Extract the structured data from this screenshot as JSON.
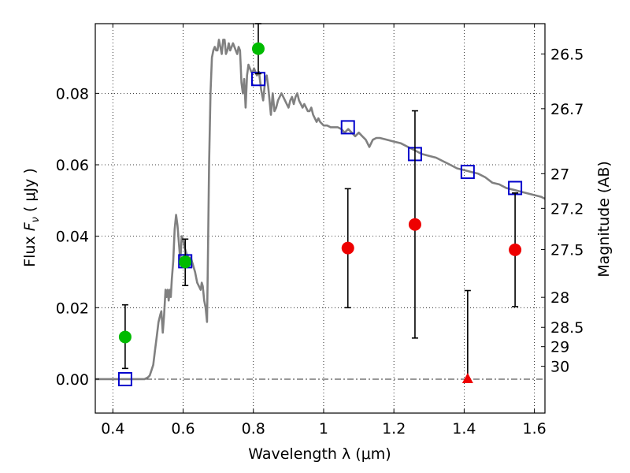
{
  "chart_data": {
    "type": "scatter",
    "xlabel": "Wavelength  λ (μm)",
    "ylabel_prefix": "Flux ",
    "ylabel_var": "F",
    "ylabel_sub": "ν",
    "ylabel_suffix": " ( μJy )",
    "y2label": "Magnitude (AB)",
    "xlim": [
      0.35,
      1.63
    ],
    "ylim": [
      -0.0095,
      0.0995
    ],
    "grid": true,
    "x_ticks": [
      {
        "value": 0.4,
        "label": "0.4"
      },
      {
        "value": 0.6,
        "label": "0.6"
      },
      {
        "value": 0.8,
        "label": "0.8"
      },
      {
        "value": 1.0,
        "label": "1"
      },
      {
        "value": 1.2,
        "label": "1.2"
      },
      {
        "value": 1.4,
        "label": "1.4"
      },
      {
        "value": 1.6,
        "label": "1.6"
      }
    ],
    "y_ticks": [
      {
        "value": 0.0,
        "label": "0.00"
      },
      {
        "value": 0.02,
        "label": "0.02"
      },
      {
        "value": 0.04,
        "label": "0.04"
      },
      {
        "value": 0.06,
        "label": "0.06"
      },
      {
        "value": 0.08,
        "label": "0.08"
      }
    ],
    "y2_ticks": [
      {
        "mag": "26.5",
        "flux": 0.091
      },
      {
        "mag": "26.7",
        "flux": 0.0757
      },
      {
        "mag": "27",
        "flux": 0.0575
      },
      {
        "mag": "27.2",
        "flux": 0.0478
      },
      {
        "mag": "27.5",
        "flux": 0.0363
      },
      {
        "mag": "28",
        "flux": 0.0229
      },
      {
        "mag": "28.5",
        "flux": 0.0145
      },
      {
        "mag": "29",
        "flux": 0.0091
      },
      {
        "mag": "30",
        "flux": 0.0036
      }
    ],
    "series": [
      {
        "kind": "line",
        "color": "#808080",
        "points": [
          [
            0.35,
            0.0
          ],
          [
            0.49,
            0.0
          ],
          [
            0.5,
            0.0005
          ],
          [
            0.505,
            0.001
          ],
          [
            0.51,
            0.0025
          ],
          [
            0.515,
            0.004
          ],
          [
            0.52,
            0.008
          ],
          [
            0.525,
            0.012
          ],
          [
            0.53,
            0.016
          ],
          [
            0.535,
            0.018
          ],
          [
            0.538,
            0.019
          ],
          [
            0.542,
            0.013
          ],
          [
            0.546,
            0.018
          ],
          [
            0.55,
            0.025
          ],
          [
            0.553,
            0.023
          ],
          [
            0.556,
            0.025
          ],
          [
            0.559,
            0.022
          ],
          [
            0.562,
            0.025
          ],
          [
            0.565,
            0.023
          ],
          [
            0.568,
            0.028
          ],
          [
            0.572,
            0.033
          ],
          [
            0.576,
            0.042
          ],
          [
            0.58,
            0.046
          ],
          [
            0.584,
            0.043
          ],
          [
            0.588,
            0.038
          ],
          [
            0.592,
            0.033
          ],
          [
            0.596,
            0.04
          ],
          [
            0.6,
            0.039
          ],
          [
            0.604,
            0.037
          ],
          [
            0.61,
            0.035
          ],
          [
            0.616,
            0.034
          ],
          [
            0.622,
            0.034
          ],
          [
            0.628,
            0.032
          ],
          [
            0.634,
            0.03
          ],
          [
            0.64,
            0.027
          ],
          [
            0.645,
            0.026
          ],
          [
            0.65,
            0.025
          ],
          [
            0.653,
            0.027
          ],
          [
            0.656,
            0.026
          ],
          [
            0.66,
            0.022
          ],
          [
            0.664,
            0.02
          ],
          [
            0.668,
            0.016
          ],
          [
            0.67,
            0.03
          ],
          [
            0.674,
            0.06
          ],
          [
            0.678,
            0.08
          ],
          [
            0.682,
            0.09
          ],
          [
            0.686,
            0.092
          ],
          [
            0.69,
            0.093
          ],
          [
            0.694,
            0.092
          ],
          [
            0.698,
            0.092
          ],
          [
            0.702,
            0.095
          ],
          [
            0.706,
            0.093
          ],
          [
            0.71,
            0.091
          ],
          [
            0.714,
            0.095
          ],
          [
            0.718,
            0.095
          ],
          [
            0.722,
            0.091
          ],
          [
            0.726,
            0.092
          ],
          [
            0.73,
            0.094
          ],
          [
            0.734,
            0.092
          ],
          [
            0.738,
            0.093
          ],
          [
            0.742,
            0.094
          ],
          [
            0.746,
            0.093
          ],
          [
            0.75,
            0.092
          ],
          [
            0.754,
            0.091
          ],
          [
            0.758,
            0.093
          ],
          [
            0.762,
            0.092
          ],
          [
            0.766,
            0.083
          ],
          [
            0.77,
            0.08
          ],
          [
            0.774,
            0.084
          ],
          [
            0.778,
            0.076
          ],
          [
            0.782,
            0.085
          ],
          [
            0.786,
            0.088
          ],
          [
            0.79,
            0.087
          ],
          [
            0.794,
            0.086
          ],
          [
            0.798,
            0.086
          ],
          [
            0.802,
            0.087
          ],
          [
            0.806,
            0.086
          ],
          [
            0.81,
            0.085
          ],
          [
            0.816,
            0.086
          ],
          [
            0.822,
            0.081
          ],
          [
            0.828,
            0.078
          ],
          [
            0.834,
            0.084
          ],
          [
            0.838,
            0.085
          ],
          [
            0.842,
            0.082
          ],
          [
            0.846,
            0.078
          ],
          [
            0.85,
            0.074
          ],
          [
            0.855,
            0.08
          ],
          [
            0.86,
            0.075
          ],
          [
            0.865,
            0.076
          ],
          [
            0.87,
            0.078
          ],
          [
            0.875,
            0.079
          ],
          [
            0.88,
            0.08
          ],
          [
            0.885,
            0.079
          ],
          [
            0.89,
            0.078
          ],
          [
            0.895,
            0.077
          ],
          [
            0.9,
            0.076
          ],
          [
            0.905,
            0.078
          ],
          [
            0.91,
            0.079
          ],
          [
            0.915,
            0.077
          ],
          [
            0.92,
            0.079
          ],
          [
            0.925,
            0.08
          ],
          [
            0.93,
            0.078
          ],
          [
            0.935,
            0.077
          ],
          [
            0.94,
            0.076
          ],
          [
            0.945,
            0.077
          ],
          [
            0.95,
            0.076
          ],
          [
            0.955,
            0.075
          ],
          [
            0.96,
            0.075
          ],
          [
            0.965,
            0.076
          ],
          [
            0.97,
            0.074
          ],
          [
            0.975,
            0.073
          ],
          [
            0.98,
            0.072
          ],
          [
            0.985,
            0.073
          ],
          [
            0.99,
            0.072
          ],
          [
            1.0,
            0.071
          ],
          [
            1.01,
            0.071
          ],
          [
            1.02,
            0.0705
          ],
          [
            1.03,
            0.0705
          ],
          [
            1.04,
            0.0705
          ],
          [
            1.05,
            0.07
          ],
          [
            1.06,
            0.069
          ],
          [
            1.07,
            0.07
          ],
          [
            1.08,
            0.069
          ],
          [
            1.09,
            0.068
          ],
          [
            1.1,
            0.069
          ],
          [
            1.11,
            0.068
          ],
          [
            1.12,
            0.067
          ],
          [
            1.13,
            0.065
          ],
          [
            1.14,
            0.067
          ],
          [
            1.15,
            0.0675
          ],
          [
            1.16,
            0.0675
          ],
          [
            1.18,
            0.067
          ],
          [
            1.2,
            0.0665
          ],
          [
            1.22,
            0.066
          ],
          [
            1.24,
            0.065
          ],
          [
            1.26,
            0.064
          ],
          [
            1.28,
            0.063
          ],
          [
            1.3,
            0.0625
          ],
          [
            1.32,
            0.062
          ],
          [
            1.34,
            0.061
          ],
          [
            1.36,
            0.06
          ],
          [
            1.38,
            0.059
          ],
          [
            1.4,
            0.0585
          ],
          [
            1.42,
            0.058
          ],
          [
            1.44,
            0.0575
          ],
          [
            1.46,
            0.0565
          ],
          [
            1.48,
            0.055
          ],
          [
            1.5,
            0.0545
          ],
          [
            1.52,
            0.0535
          ],
          [
            1.54,
            0.053
          ],
          [
            1.56,
            0.0525
          ],
          [
            1.58,
            0.052
          ],
          [
            1.6,
            0.0515
          ],
          [
            1.62,
            0.051
          ],
          [
            1.63,
            0.0505
          ]
        ]
      },
      {
        "kind": "square",
        "color": "#0000cc",
        "points": [
          {
            "x": 0.435,
            "y": 0.0
          },
          {
            "x": 0.606,
            "y": 0.033
          },
          {
            "x": 0.814,
            "y": 0.084
          },
          {
            "x": 1.069,
            "y": 0.0705
          },
          {
            "x": 1.26,
            "y": 0.063
          },
          {
            "x": 1.41,
            "y": 0.058
          },
          {
            "x": 1.545,
            "y": 0.0535
          }
        ]
      },
      {
        "kind": "circle",
        "color": "#00bb00",
        "points": [
          {
            "x": 0.435,
            "y": 0.0118,
            "lo": 0.003,
            "hi": 0.0208
          },
          {
            "x": 0.606,
            "y": 0.0328,
            "lo": 0.0262,
            "hi": 0.0392
          },
          {
            "x": 0.814,
            "y": 0.0925,
            "lo": 0.0855,
            "hi": 0.0995
          }
        ]
      },
      {
        "kind": "circle",
        "color": "#ee0000",
        "points": [
          {
            "x": 1.069,
            "y": 0.0367,
            "lo": 0.02,
            "hi": 0.0533
          },
          {
            "x": 1.26,
            "y": 0.0433,
            "lo": 0.0115,
            "hi": 0.0751
          },
          {
            "x": 1.545,
            "y": 0.0362,
            "lo": 0.0203,
            "hi": 0.0521
          }
        ]
      },
      {
        "kind": "triangle",
        "color": "#ee0000",
        "points": [
          {
            "x": 1.41,
            "y": 0.0,
            "lo": 0.0,
            "hi": 0.0248
          }
        ]
      }
    ]
  }
}
